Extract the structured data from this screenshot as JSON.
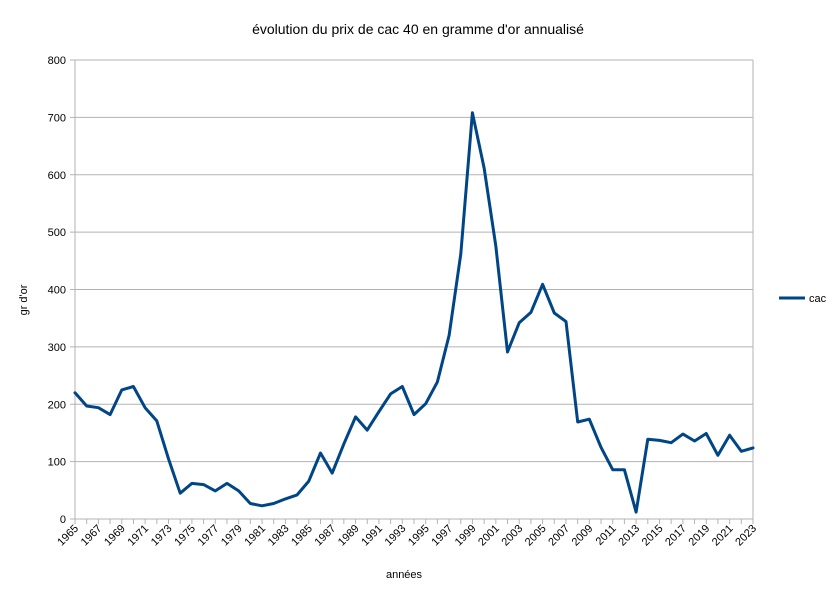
{
  "chart_data": {
    "type": "line",
    "title": "évolution du prix de cac 40 en gramme d'or annualisé",
    "xlabel": "années",
    "ylabel": "gr d'or",
    "ylim": [
      0,
      800
    ],
    "yticks": [
      0,
      100,
      200,
      300,
      400,
      500,
      600,
      700,
      800
    ],
    "grid": true,
    "legend": "right",
    "x": [
      1965,
      1966,
      1967,
      1968,
      1969,
      1970,
      1971,
      1972,
      1973,
      1974,
      1975,
      1976,
      1977,
      1978,
      1979,
      1980,
      1981,
      1982,
      1983,
      1984,
      1985,
      1986,
      1987,
      1988,
      1989,
      1990,
      1991,
      1992,
      1993,
      1994,
      1995,
      1996,
      1997,
      1998,
      1999,
      2000,
      2001,
      2002,
      2003,
      2004,
      2005,
      2006,
      2007,
      2008,
      2009,
      2010,
      2011,
      2012,
      2013,
      2014,
      2015,
      2016,
      2017,
      2018,
      2019,
      2020,
      2021,
      2022,
      2023
    ],
    "xtick_labels": [
      "1965",
      "1967",
      "1969",
      "1971",
      "1973",
      "1975",
      "1977",
      "1979",
      "1981",
      "1983",
      "1985",
      "1987",
      "1989",
      "1991",
      "1993",
      "1995",
      "1997",
      "1999",
      "2001",
      "2003",
      "2005",
      "2007",
      "2009",
      "2011",
      "2013",
      "2015",
      "2017",
      "2019",
      "2021",
      "2023"
    ],
    "series": [
      {
        "name": "cac",
        "color": "#004586",
        "values": [
          220,
          197,
          194,
          182,
          225,
          231,
          194,
          171,
          105,
          45,
          62,
          60,
          49,
          62,
          49,
          27,
          23,
          27,
          35,
          42,
          66,
          115,
          80,
          131,
          178,
          155,
          187,
          218,
          231,
          182,
          201,
          239,
          320,
          462,
          708,
          612,
          476,
          291,
          342,
          360,
          409,
          359,
          344,
          169,
          174,
          125,
          86,
          86,
          12,
          139,
          137,
          133,
          148,
          136,
          149,
          111,
          146,
          118,
          124
        ]
      }
    ]
  }
}
